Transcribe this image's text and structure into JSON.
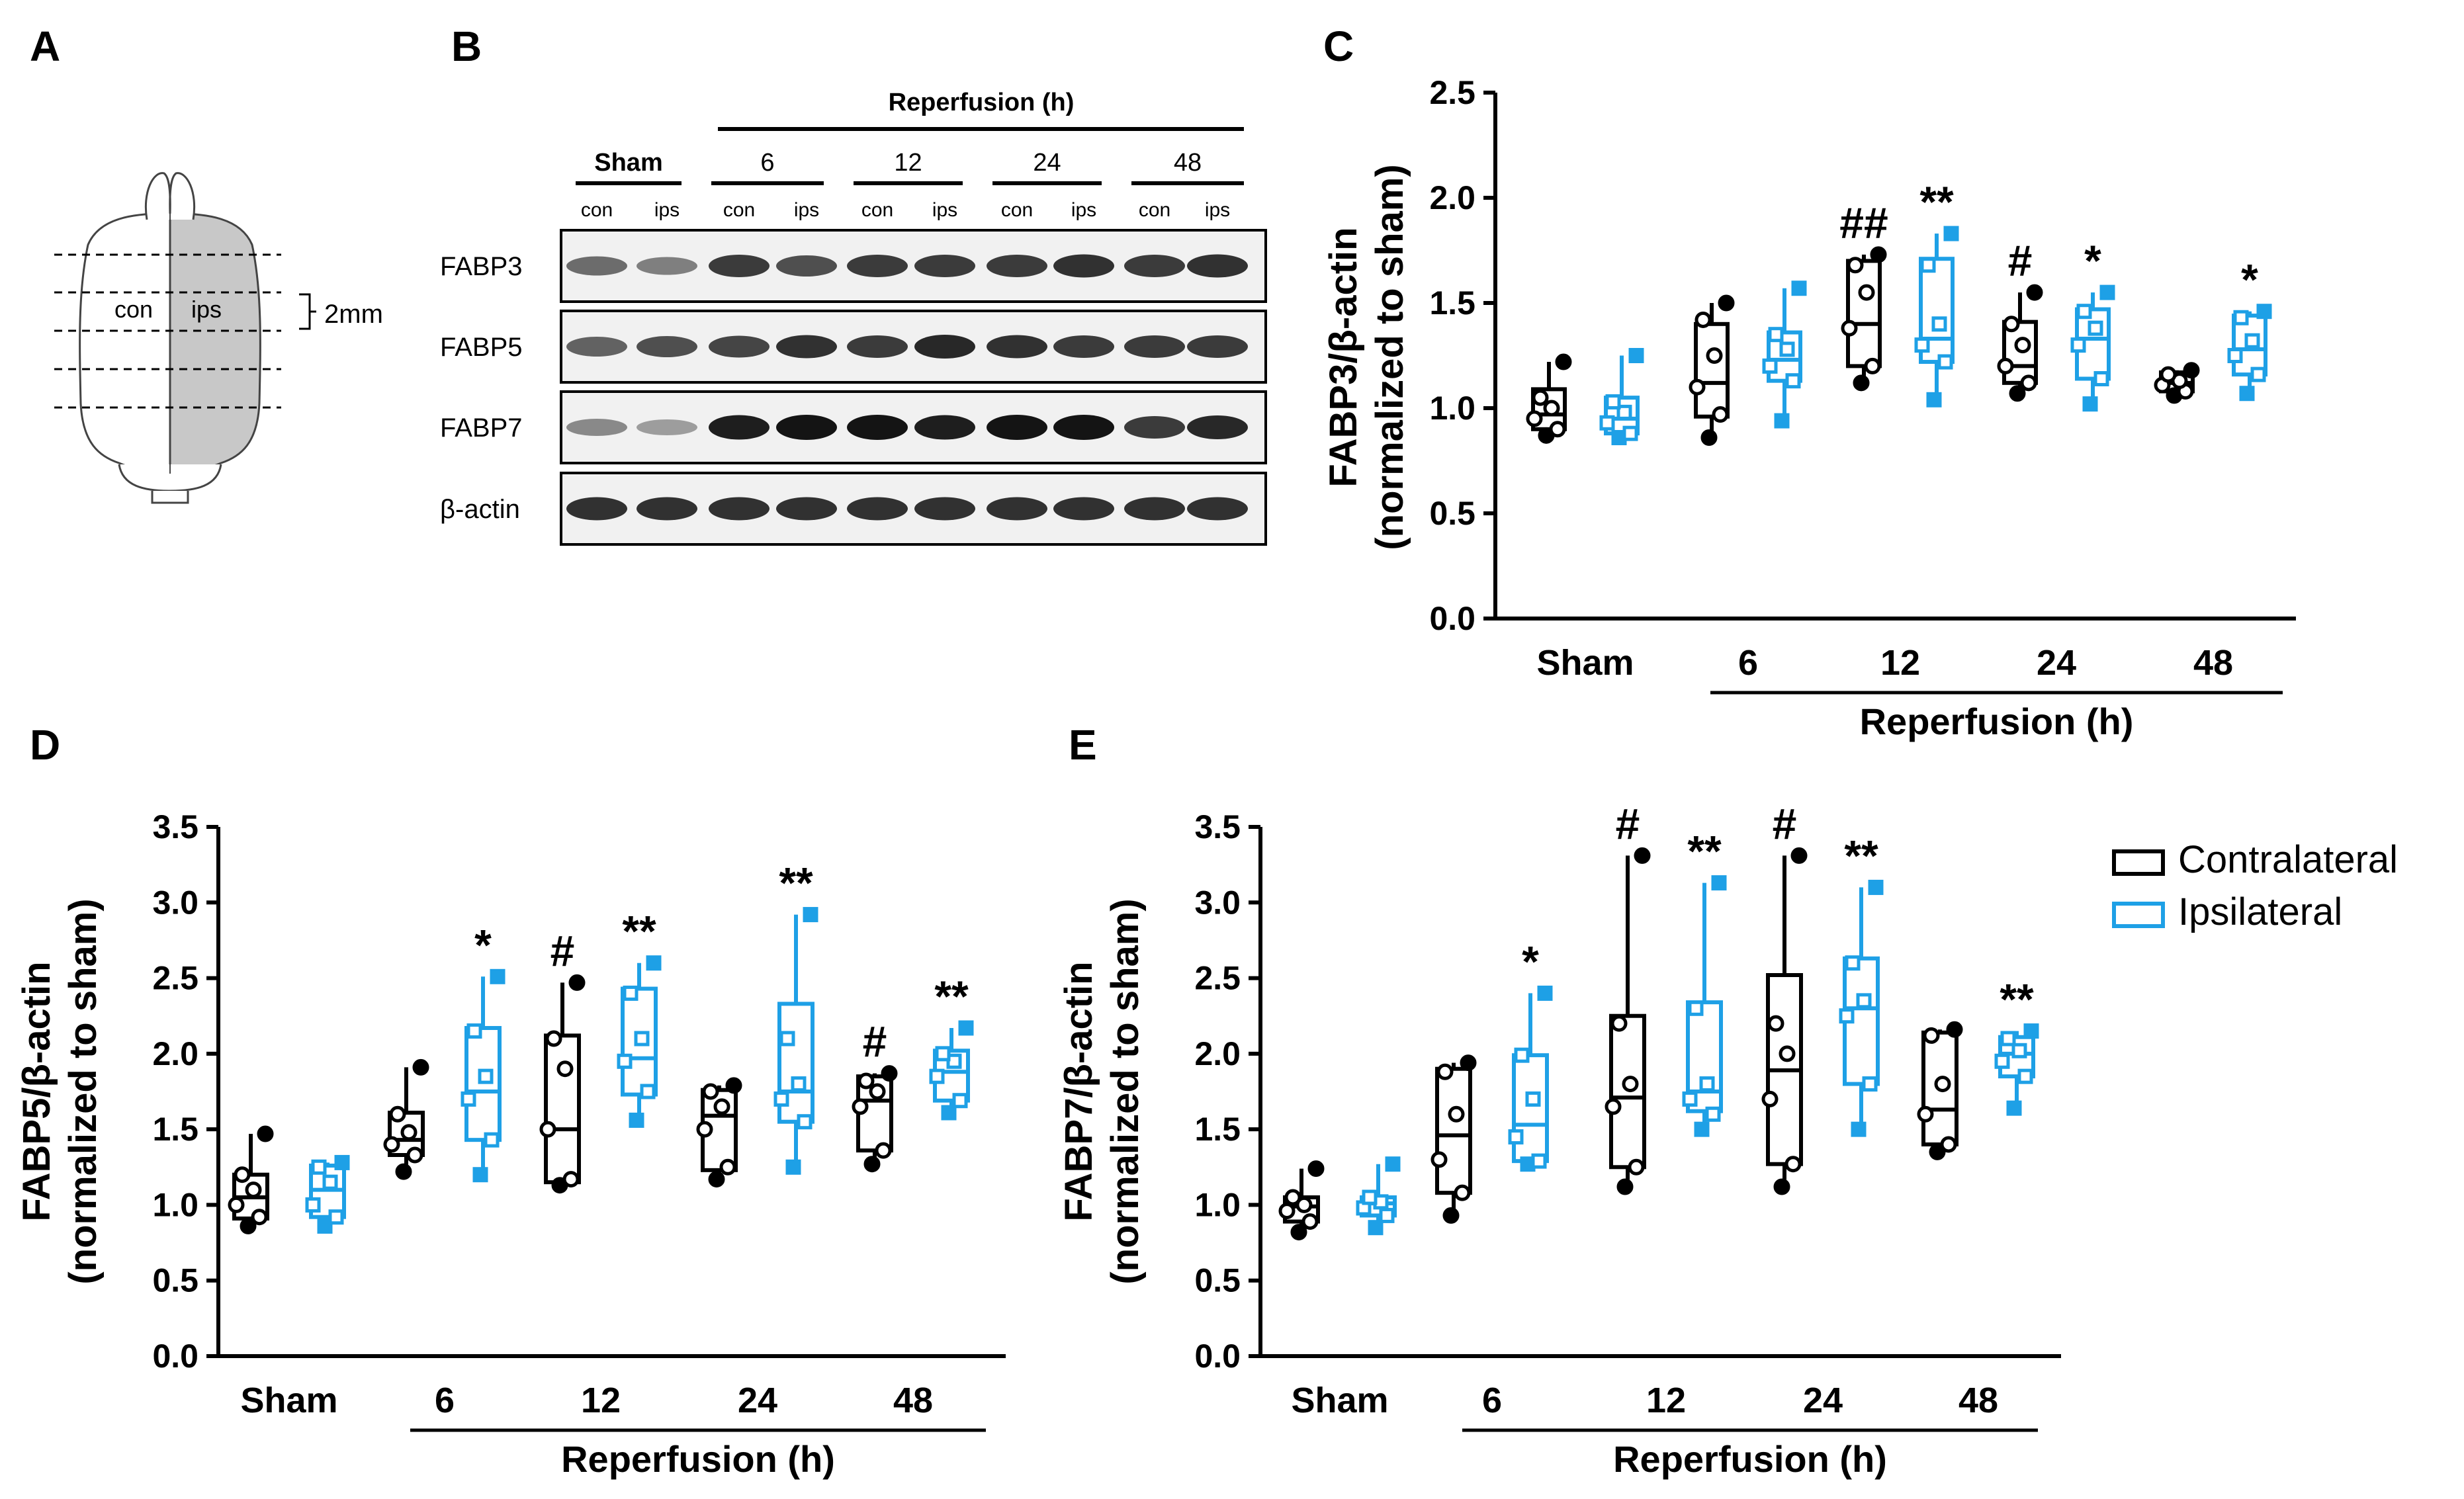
{
  "colors": {
    "contralateral": "#000000",
    "ipsilateral": "#1ea0e6",
    "brain_shade": "#c8c8c8"
  },
  "panel_letters": {
    "a": "A",
    "b": "B",
    "c": "C",
    "d": "D",
    "e": "E"
  },
  "panel_a": {
    "con": "con",
    "ips": "ips",
    "scale": "2mm"
  },
  "panel_b": {
    "header": "Reperfusion (h)",
    "groups": [
      "Sham",
      "6",
      "12",
      "24",
      "48"
    ],
    "lane_labels": [
      "con",
      "ips",
      "con",
      "ips",
      "con",
      "ips",
      "con",
      "ips",
      "con",
      "ips"
    ],
    "rows": [
      {
        "label": "FABP3",
        "intensity": [
          0.55,
          0.45,
          0.8,
          0.7,
          0.8,
          0.8,
          0.8,
          0.85,
          0.8,
          0.85
        ]
      },
      {
        "label": "FABP5",
        "intensity": [
          0.6,
          0.7,
          0.75,
          0.85,
          0.8,
          0.9,
          0.85,
          0.8,
          0.8,
          0.8
        ]
      },
      {
        "label": "FABP7",
        "intensity": [
          0.4,
          0.3,
          0.95,
          1.0,
          1.0,
          0.95,
          1.0,
          1.0,
          0.8,
          0.9
        ]
      },
      {
        "label": "β-actin",
        "intensity": [
          0.85,
          0.85,
          0.85,
          0.85,
          0.85,
          0.85,
          0.85,
          0.85,
          0.85,
          0.85
        ]
      }
    ]
  },
  "legend": {
    "items": [
      "Contralateral",
      "Ipsilateral"
    ]
  },
  "chart_data": [
    {
      "id": "C",
      "type": "box",
      "ylabel_line1": "FABP3/β-actin",
      "ylabel_line2": "(normalized to sham)",
      "ylim": [
        0,
        2.5
      ],
      "yticks": [
        "0.0",
        "0.5",
        "1.0",
        "1.5",
        "2.0",
        "2.5"
      ],
      "categories": [
        "Sham",
        "6",
        "12",
        "24",
        "48"
      ],
      "xgroup_label": "Reperfusion (h)",
      "series": [
        {
          "name": "Contralateral",
          "boxes": [
            {
              "min": 0.87,
              "q1": 0.9,
              "median": 0.97,
              "q3": 1.09,
              "max": 1.22,
              "points": [
                0.87,
                0.9,
                0.95,
                1.0,
                1.05,
                1.22
              ]
            },
            {
              "min": 0.86,
              "q1": 0.96,
              "median": 1.12,
              "q3": 1.4,
              "max": 1.5,
              "points": [
                0.86,
                0.97,
                1.1,
                1.25,
                1.42,
                1.5
              ]
            },
            {
              "min": 1.12,
              "q1": 1.2,
              "median": 1.4,
              "q3": 1.7,
              "max": 1.73,
              "points": [
                1.12,
                1.2,
                1.38,
                1.55,
                1.68,
                1.73
              ]
            },
            {
              "min": 1.07,
              "q1": 1.12,
              "median": 1.2,
              "q3": 1.41,
              "max": 1.55,
              "points": [
                1.07,
                1.12,
                1.2,
                1.3,
                1.4,
                1.55
              ]
            },
            {
              "min": 1.06,
              "q1": 1.08,
              "median": 1.12,
              "q3": 1.17,
              "max": 1.18,
              "points": [
                1.06,
                1.08,
                1.11,
                1.13,
                1.16,
                1.18
              ]
            }
          ]
        },
        {
          "name": "Ipsilateral",
          "boxes": [
            {
              "min": 0.86,
              "q1": 0.88,
              "median": 0.95,
              "q3": 1.05,
              "max": 1.25,
              "points": [
                0.86,
                0.88,
                0.93,
                0.98,
                1.03,
                1.25
              ]
            },
            {
              "min": 0.94,
              "q1": 1.13,
              "median": 1.23,
              "q3": 1.36,
              "max": 1.57,
              "points": [
                0.94,
                1.13,
                1.2,
                1.28,
                1.35,
                1.57
              ]
            },
            {
              "min": 1.04,
              "q1": 1.22,
              "median": 1.33,
              "q3": 1.71,
              "max": 1.83,
              "points": [
                1.04,
                1.22,
                1.3,
                1.4,
                1.68,
                1.83
              ]
            },
            {
              "min": 1.02,
              "q1": 1.14,
              "median": 1.33,
              "q3": 1.47,
              "max": 1.55,
              "points": [
                1.02,
                1.14,
                1.3,
                1.38,
                1.46,
                1.55
              ]
            },
            {
              "min": 1.07,
              "q1": 1.16,
              "median": 1.28,
              "q3": 1.44,
              "max": 1.46,
              "points": [
                1.07,
                1.16,
                1.25,
                1.32,
                1.43,
                1.46
              ]
            }
          ]
        }
      ],
      "annotations": [
        {
          "group": 2,
          "series": 0,
          "text": "##"
        },
        {
          "group": 2,
          "series": 1,
          "text": "**"
        },
        {
          "group": 3,
          "series": 0,
          "text": "#"
        },
        {
          "group": 3,
          "series": 1,
          "text": "*"
        },
        {
          "group": 4,
          "series": 1,
          "text": "*"
        }
      ]
    },
    {
      "id": "D",
      "type": "box",
      "ylabel_line1": "FABP5/β-actin",
      "ylabel_line2": "(normalized to sham)",
      "ylim": [
        0,
        3.5
      ],
      "yticks": [
        "0.0",
        "0.5",
        "1.0",
        "1.5",
        "2.0",
        "2.5",
        "3.0",
        "3.5"
      ],
      "categories": [
        "Sham",
        "6",
        "12",
        "24",
        "48"
      ],
      "xgroup_label": "Reperfusion (h)",
      "series": [
        {
          "name": "Contralateral",
          "boxes": [
            {
              "min": 0.86,
              "q1": 0.91,
              "median": 1.05,
              "q3": 1.2,
              "max": 1.47,
              "points": [
                0.86,
                0.92,
                1.0,
                1.1,
                1.2,
                1.47
              ]
            },
            {
              "min": 1.22,
              "q1": 1.33,
              "median": 1.43,
              "q3": 1.61,
              "max": 1.91,
              "points": [
                1.22,
                1.33,
                1.4,
                1.48,
                1.6,
                1.91
              ]
            },
            {
              "min": 1.13,
              "q1": 1.15,
              "median": 1.5,
              "q3": 2.12,
              "max": 2.47,
              "points": [
                1.13,
                1.17,
                1.5,
                1.9,
                2.1,
                2.47
              ]
            },
            {
              "min": 1.17,
              "q1": 1.23,
              "median": 1.59,
              "q3": 1.76,
              "max": 1.79,
              "points": [
                1.17,
                1.25,
                1.5,
                1.65,
                1.75,
                1.79
              ]
            },
            {
              "min": 1.27,
              "q1": 1.36,
              "median": 1.69,
              "q3": 1.85,
              "max": 1.87,
              "points": [
                1.27,
                1.36,
                1.65,
                1.75,
                1.82,
                1.87
              ]
            }
          ]
        },
        {
          "name": "Ipsilateral",
          "boxes": [
            {
              "min": 0.86,
              "q1": 0.92,
              "median": 1.1,
              "q3": 1.26,
              "max": 1.28,
              "points": [
                0.86,
                0.92,
                1.0,
                1.15,
                1.25,
                1.28
              ]
            },
            {
              "min": 1.2,
              "q1": 1.43,
              "median": 1.75,
              "q3": 2.17,
              "max": 2.51,
              "points": [
                1.2,
                1.43,
                1.7,
                1.85,
                2.15,
                2.51
              ]
            },
            {
              "min": 1.56,
              "q1": 1.73,
              "median": 1.97,
              "q3": 2.43,
              "max": 2.6,
              "points": [
                1.56,
                1.75,
                1.95,
                2.1,
                2.4,
                2.6
              ]
            },
            {
              "min": 1.25,
              "q1": 1.55,
              "median": 1.75,
              "q3": 2.33,
              "max": 2.92,
              "points": [
                1.25,
                1.55,
                1.7,
                1.8,
                2.1,
                2.92
              ]
            },
            {
              "min": 1.61,
              "q1": 1.69,
              "median": 1.88,
              "q3": 2.02,
              "max": 2.17,
              "points": [
                1.61,
                1.69,
                1.85,
                1.95,
                2.0,
                2.17
              ]
            }
          ]
        }
      ],
      "annotations": [
        {
          "group": 1,
          "series": 1,
          "text": "*"
        },
        {
          "group": 2,
          "series": 0,
          "text": "#"
        },
        {
          "group": 2,
          "series": 1,
          "text": "**"
        },
        {
          "group": 3,
          "series": 1,
          "text": "**"
        },
        {
          "group": 4,
          "series": 0,
          "text": "#"
        },
        {
          "group": 4,
          "series": 1,
          "text": "**"
        }
      ]
    },
    {
      "id": "E",
      "type": "box",
      "ylabel_line1": "FABP7/β-actin",
      "ylabel_line2": "(normalized to sham)",
      "ylim": [
        0,
        3.5
      ],
      "yticks": [
        "0.0",
        "0.5",
        "1.0",
        "1.5",
        "2.0",
        "2.5",
        "3.0",
        "3.5"
      ],
      "categories": [
        "Sham",
        "6",
        "12",
        "24",
        "48"
      ],
      "xgroup_label": "Reperfusion (h)",
      "series": [
        {
          "name": "Contralateral",
          "boxes": [
            {
              "min": 0.82,
              "q1": 0.89,
              "median": 0.99,
              "q3": 1.05,
              "max": 1.24,
              "points": [
                0.82,
                0.89,
                0.96,
                1.0,
                1.05,
                1.24
              ]
            },
            {
              "min": 0.93,
              "q1": 1.08,
              "median": 1.46,
              "q3": 1.9,
              "max": 1.94,
              "points": [
                0.93,
                1.08,
                1.3,
                1.6,
                1.88,
                1.94
              ]
            },
            {
              "min": 1.12,
              "q1": 1.25,
              "median": 1.71,
              "q3": 2.25,
              "max": 3.31,
              "points": [
                1.12,
                1.25,
                1.65,
                1.8,
                2.2,
                3.31
              ]
            },
            {
              "min": 1.12,
              "q1": 1.27,
              "median": 1.89,
              "q3": 2.52,
              "max": 3.31,
              "points": [
                1.12,
                1.27,
                1.7,
                2.0,
                2.2,
                3.31
              ]
            },
            {
              "min": 1.35,
              "q1": 1.4,
              "median": 1.63,
              "q3": 2.14,
              "max": 2.16,
              "points": [
                1.35,
                1.4,
                1.6,
                1.8,
                2.12,
                2.16
              ]
            }
          ]
        },
        {
          "name": "Ipsilateral",
          "boxes": [
            {
              "min": 0.85,
              "q1": 0.93,
              "median": 1.01,
              "q3": 1.05,
              "max": 1.27,
              "points": [
                0.85,
                0.93,
                0.98,
                1.02,
                1.05,
                1.27
              ]
            },
            {
              "min": 1.27,
              "q1": 1.29,
              "median": 1.53,
              "q3": 1.99,
              "max": 2.4,
              "points": [
                1.27,
                1.29,
                1.45,
                1.7,
                1.99,
                2.4
              ]
            },
            {
              "min": 1.5,
              "q1": 1.62,
              "median": 1.75,
              "q3": 2.34,
              "max": 3.13,
              "points": [
                1.5,
                1.6,
                1.7,
                1.8,
                2.3,
                3.13
              ]
            },
            {
              "min": 1.5,
              "q1": 1.8,
              "median": 2.3,
              "q3": 2.63,
              "max": 3.1,
              "points": [
                1.5,
                1.8,
                2.25,
                2.35,
                2.6,
                3.1
              ]
            },
            {
              "min": 1.64,
              "q1": 1.85,
              "median": 2.0,
              "q3": 2.11,
              "max": 2.15,
              "points": [
                1.64,
                1.85,
                1.95,
                2.02,
                2.1,
                2.15
              ]
            }
          ]
        }
      ],
      "annotations": [
        {
          "group": 1,
          "series": 1,
          "text": "*"
        },
        {
          "group": 2,
          "series": 0,
          "text": "#"
        },
        {
          "group": 2,
          "series": 1,
          "text": "**"
        },
        {
          "group": 3,
          "series": 0,
          "text": "#"
        },
        {
          "group": 3,
          "series": 1,
          "text": "**"
        },
        {
          "group": 4,
          "series": 1,
          "text": "**"
        }
      ]
    }
  ]
}
